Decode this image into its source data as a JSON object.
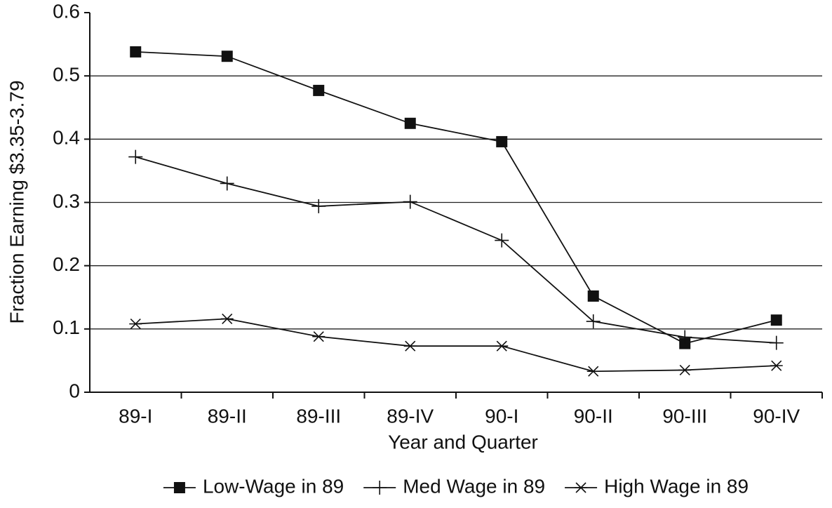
{
  "chart_data": {
    "type": "line",
    "x_label": "Year and Quarter",
    "y_label": "Fraction Earning $3.35-3.79",
    "categories": [
      "89-I",
      "89-II",
      "89-III",
      "89-IV",
      "90-I",
      "90-II",
      "90-III",
      "90-IV"
    ],
    "series": [
      {
        "name": "Low-Wage in 89",
        "color": "#111111",
        "marker": "square",
        "values": [
          0.538,
          0.531,
          0.477,
          0.425,
          0.396,
          0.152,
          0.077,
          0.114
        ]
      },
      {
        "name": "Med Wage in 89",
        "color": "#111111",
        "marker": "plus",
        "values": [
          0.372,
          0.33,
          0.294,
          0.301,
          0.24,
          0.112,
          0.087,
          0.078
        ]
      },
      {
        "name": "High Wage in 89",
        "color": "#111111",
        "marker": "star",
        "values": [
          0.108,
          0.116,
          0.088,
          0.073,
          0.073,
          0.033,
          0.035,
          0.042
        ]
      }
    ],
    "ylim": [
      0,
      0.6
    ],
    "yticks": [
      0,
      0.1,
      0.2,
      0.3,
      0.4,
      0.5,
      0.6
    ],
    "grid": true,
    "legend": "bottom"
  }
}
